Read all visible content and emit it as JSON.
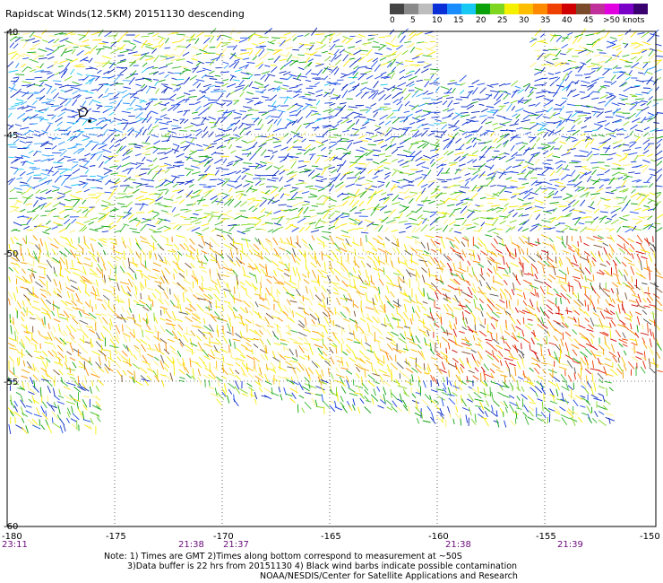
{
  "title": "Rapidscat Winds(12.5KM) 20151130 descending",
  "colorbar": {
    "labels": [
      "0",
      "5",
      "10",
      "15",
      "20",
      "25",
      "30",
      "35",
      "40",
      "45",
      ">50 knots"
    ],
    "colors": [
      "#444444",
      "#8a8a8a",
      "#bdbdbd",
      "#0b2fd6",
      "#1a8cff",
      "#16c8f2",
      "#0aa10a",
      "#7fd620",
      "#f5f000",
      "#ffbf00",
      "#ff8a00",
      "#f04000",
      "#d00000",
      "#7a4a2a",
      "#c0309a",
      "#e000e0",
      "#7a00c8",
      "#3a0070"
    ]
  },
  "axes": {
    "lat_labels": [
      "-40",
      "-45",
      "-50",
      "-55",
      "-60"
    ],
    "lon_labels": [
      "-180",
      "-175",
      "-170",
      "-165",
      "-160",
      "-155",
      "-150"
    ],
    "time_labels": [
      "23:11",
      "21:38",
      "21:37",
      "21:38",
      "21:39"
    ]
  },
  "notes": {
    "line1": "Note: 1) Times are GMT 2)Times along bottom correspond to measurement at ~50S",
    "line2": "3)Data buffer is 22 hrs from 20151130 4) Black wind barbs indicate possible contamination",
    "line3": "NOAA/NESDIS/Center for Satellite Applications and Research"
  }
}
